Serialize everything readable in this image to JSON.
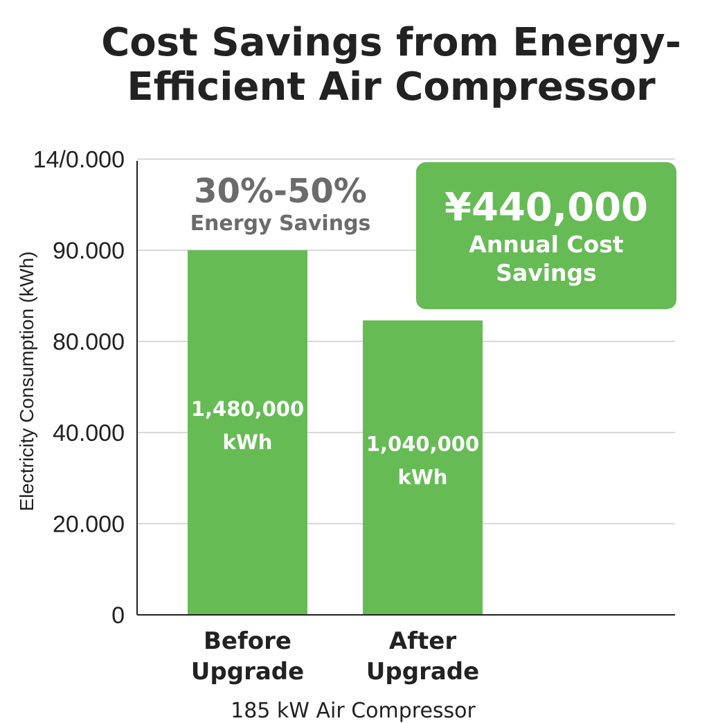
{
  "title": "Cost Savings from Energy-Efficient Air Compressor",
  "annotation": {
    "percent": "30%-50%",
    "percent_caption": "Energy Savings"
  },
  "cost_box": {
    "amount": "¥440,000",
    "caption": "Annual Cost Savings",
    "color": "#66bb55"
  },
  "chart_data": {
    "type": "bar",
    "title": "Cost Savings from Energy-Efficient Air Compressor",
    "ylabel": "Electricity Consumption (kWh)",
    "xlabel": "185 kW Air Compressor",
    "categories": [
      "Before Upgrade",
      "After Upgrade"
    ],
    "category_lines": [
      [
        "Before",
        "Upgrade"
      ],
      [
        "After",
        "Upgrade"
      ]
    ],
    "values": [
      1480000,
      1040000
    ],
    "data_labels": [
      [
        "1,480,000",
        "kWh"
      ],
      [
        "1,040,000",
        "kWh"
      ]
    ],
    "y_ticks": [
      "0",
      "20.000",
      "40.000",
      "80.000",
      "90.000",
      "14/0.000"
    ],
    "y_tick_levels": [
      0,
      1,
      2,
      3,
      4,
      5
    ],
    "bar_levels": [
      4,
      3.23
    ],
    "bar_color": "#66bb55",
    "grid": true,
    "grid_color": "#cccccc"
  }
}
